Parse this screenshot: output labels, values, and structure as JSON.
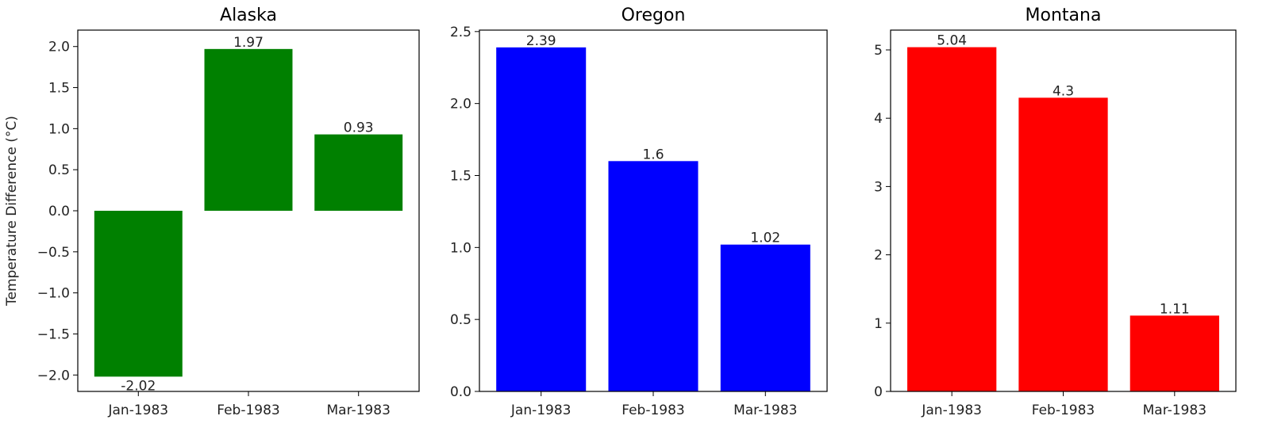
{
  "chart_data": [
    {
      "type": "bar",
      "title": "Alaska",
      "xlabel": "",
      "ylabel": "Temperature Difference (°C)",
      "categories": [
        "Jan-1983",
        "Feb-1983",
        "Mar-1983"
      ],
      "values": [
        -2.02,
        1.97,
        0.93
      ],
      "value_labels": [
        "-2.02",
        "1.97",
        "0.93"
      ],
      "color": "#008000",
      "ylim": [
        -2.2,
        2.2
      ],
      "yticks": [
        -2.0,
        -1.5,
        -1.0,
        -0.5,
        0.0,
        0.5,
        1.0,
        1.5,
        2.0
      ],
      "ytick_labels": [
        "−2.0",
        "−1.5",
        "−1.0",
        "−0.5",
        "0.0",
        "0.5",
        "1.0",
        "1.5",
        "2.0"
      ],
      "grid": false
    },
    {
      "type": "bar",
      "title": "Oregon",
      "xlabel": "",
      "ylabel": "",
      "categories": [
        "Jan-1983",
        "Feb-1983",
        "Mar-1983"
      ],
      "values": [
        2.39,
        1.6,
        1.02
      ],
      "value_labels": [
        "2.39",
        "1.6",
        "1.02"
      ],
      "color": "#0000ff",
      "ylim": [
        0,
        2.51
      ],
      "yticks": [
        0.0,
        0.5,
        1.0,
        1.5,
        2.0,
        2.5
      ],
      "ytick_labels": [
        "0.0",
        "0.5",
        "1.0",
        "1.5",
        "2.0",
        "2.5"
      ],
      "grid": false
    },
    {
      "type": "bar",
      "title": "Montana",
      "xlabel": "",
      "ylabel": "",
      "categories": [
        "Jan-1983",
        "Feb-1983",
        "Mar-1983"
      ],
      "values": [
        5.04,
        4.3,
        1.11
      ],
      "value_labels": [
        "5.04",
        "4.3",
        "1.11"
      ],
      "color": "#ff0000",
      "ylim": [
        0,
        5.29
      ],
      "yticks": [
        0,
        1,
        2,
        3,
        4,
        5
      ],
      "ytick_labels": [
        "0",
        "1",
        "2",
        "3",
        "4",
        "5"
      ],
      "grid": false
    }
  ]
}
